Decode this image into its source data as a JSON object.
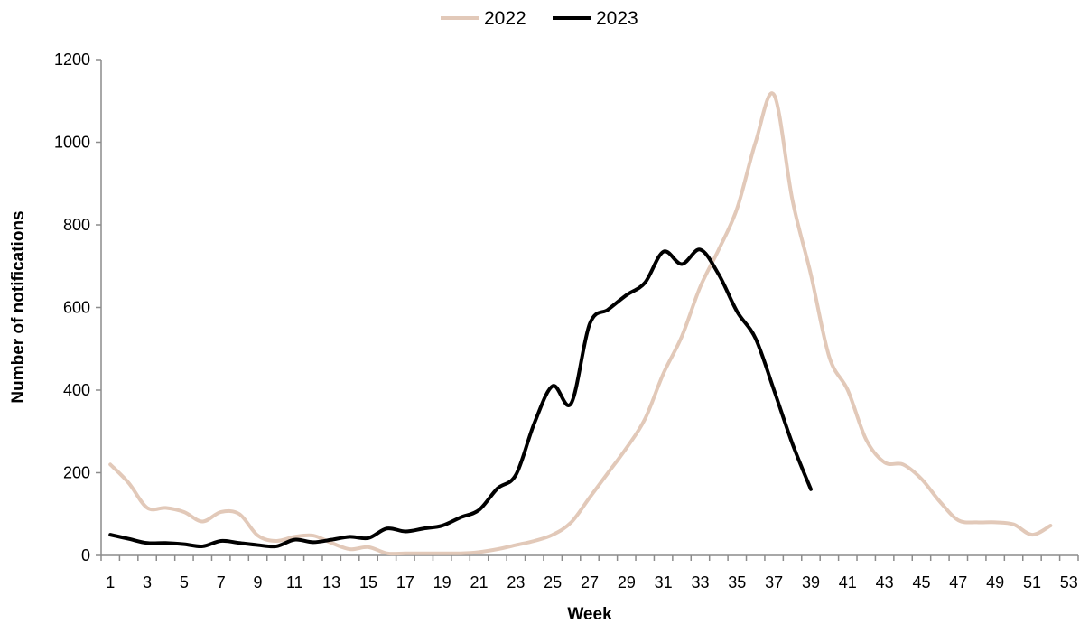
{
  "chart_data": {
    "type": "line",
    "xlabel": "Week",
    "ylabel": "Number of notifications",
    "xlim": [
      1,
      53
    ],
    "ylim": [
      0,
      1200
    ],
    "x_ticks": [
      1,
      3,
      5,
      7,
      9,
      11,
      13,
      15,
      17,
      19,
      21,
      23,
      25,
      27,
      29,
      31,
      33,
      35,
      37,
      39,
      41,
      43,
      45,
      47,
      49,
      51,
      53
    ],
    "y_ticks": [
      0,
      200,
      400,
      600,
      800,
      1000,
      1200
    ],
    "grid": false,
    "legend_position": "top-center",
    "series": [
      {
        "name": "2022",
        "color": "#e2c9b9",
        "x": [
          1,
          2,
          3,
          4,
          5,
          6,
          7,
          8,
          9,
          10,
          11,
          12,
          13,
          14,
          15,
          16,
          17,
          18,
          19,
          20,
          21,
          22,
          23,
          24,
          25,
          26,
          27,
          28,
          29,
          30,
          31,
          32,
          33,
          34,
          35,
          36,
          37,
          38,
          39,
          40,
          41,
          42,
          43,
          44,
          45,
          46,
          47,
          48,
          49,
          50,
          51,
          52
        ],
        "values": [
          220,
          175,
          115,
          115,
          105,
          82,
          105,
          100,
          48,
          35,
          45,
          48,
          30,
          15,
          20,
          5,
          5,
          5,
          5,
          5,
          8,
          15,
          25,
          35,
          50,
          80,
          140,
          200,
          260,
          330,
          440,
          530,
          650,
          740,
          840,
          1000,
          1115,
          860,
          680,
          480,
          400,
          280,
          225,
          220,
          185,
          130,
          85,
          80,
          80,
          75,
          50,
          72
        ]
      },
      {
        "name": "2023",
        "color": "#000000",
        "x": [
          1,
          2,
          3,
          4,
          5,
          6,
          7,
          8,
          9,
          10,
          11,
          12,
          13,
          14,
          15,
          16,
          17,
          18,
          19,
          20,
          21,
          22,
          23,
          24,
          25,
          26,
          27,
          28,
          29,
          30,
          31,
          32,
          33,
          34,
          35,
          36,
          37,
          38,
          39
        ],
        "values": [
          50,
          40,
          30,
          30,
          27,
          22,
          35,
          30,
          25,
          22,
          38,
          32,
          38,
          45,
          42,
          65,
          58,
          65,
          72,
          92,
          110,
          162,
          195,
          320,
          410,
          368,
          560,
          595,
          630,
          660,
          735,
          705,
          740,
          680,
          590,
          525,
          400,
          270,
          160
        ]
      }
    ]
  }
}
